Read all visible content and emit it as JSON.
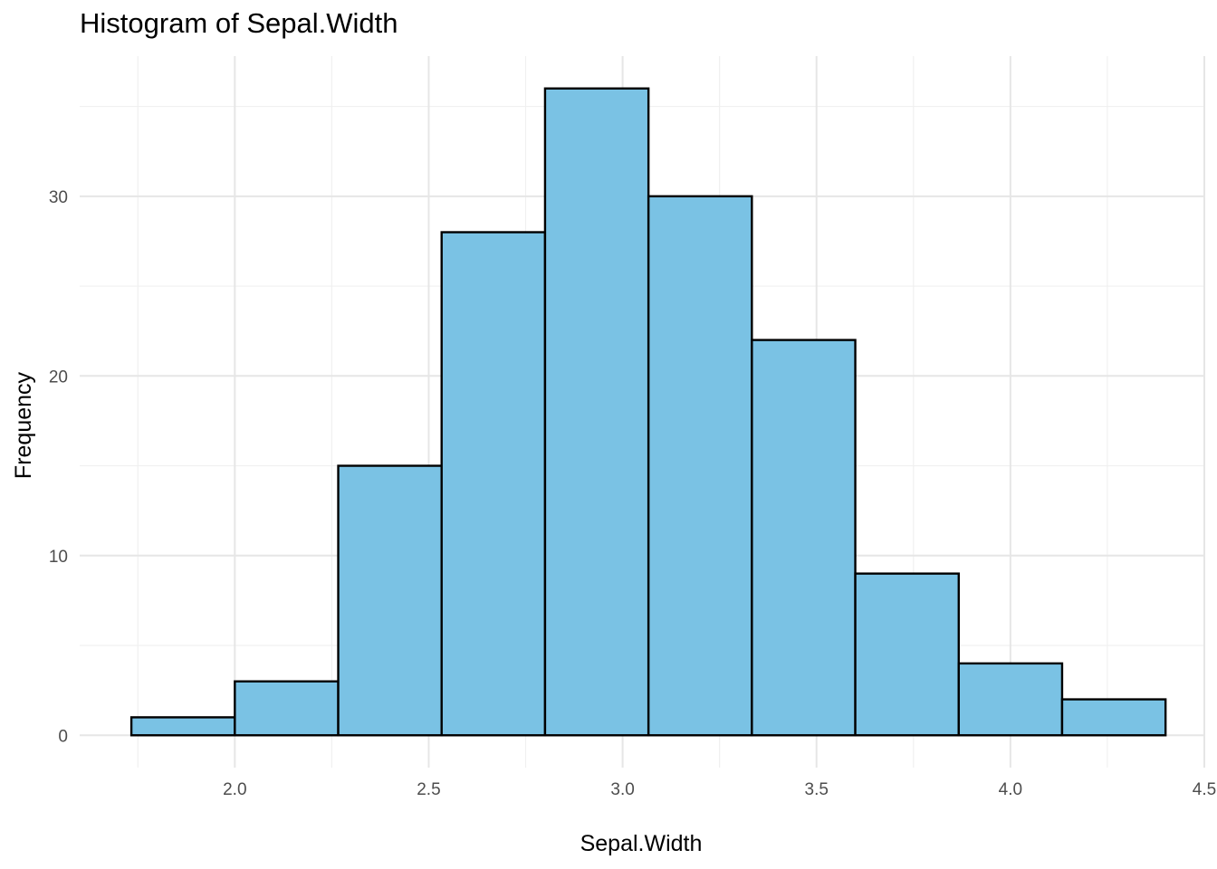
{
  "chart_data": {
    "type": "bar",
    "subtype": "histogram",
    "title": "Histogram of Sepal.Width",
    "xlabel": "Sepal.Width",
    "ylabel": "Frequency",
    "bin_edges": [
      1.7333,
      2.0,
      2.2667,
      2.5333,
      2.8,
      3.0667,
      3.3333,
      3.6,
      3.8667,
      4.1333,
      4.4
    ],
    "values": [
      1,
      3,
      15,
      28,
      36,
      30,
      22,
      9,
      4,
      2
    ],
    "xlim": [
      1.6,
      4.5
    ],
    "ylim": [
      -1.8,
      37.8
    ],
    "x_ticks": [
      "2.0",
      "2.5",
      "3.0",
      "3.5",
      "4.0",
      "4.5"
    ],
    "x_tick_values": [
      2.0,
      2.5,
      3.0,
      3.5,
      4.0,
      4.5
    ],
    "x_minor_ticks": [
      1.75,
      2.25,
      2.75,
      3.25,
      3.75,
      4.25
    ],
    "y_ticks": [
      "0",
      "10",
      "20",
      "30"
    ],
    "y_tick_values": [
      0,
      10,
      20,
      30
    ],
    "y_minor_ticks": [
      5,
      15,
      25,
      35
    ],
    "fill_color": "#7ac2e4",
    "edge_color": "#000000",
    "grid": true,
    "legend": "none"
  }
}
